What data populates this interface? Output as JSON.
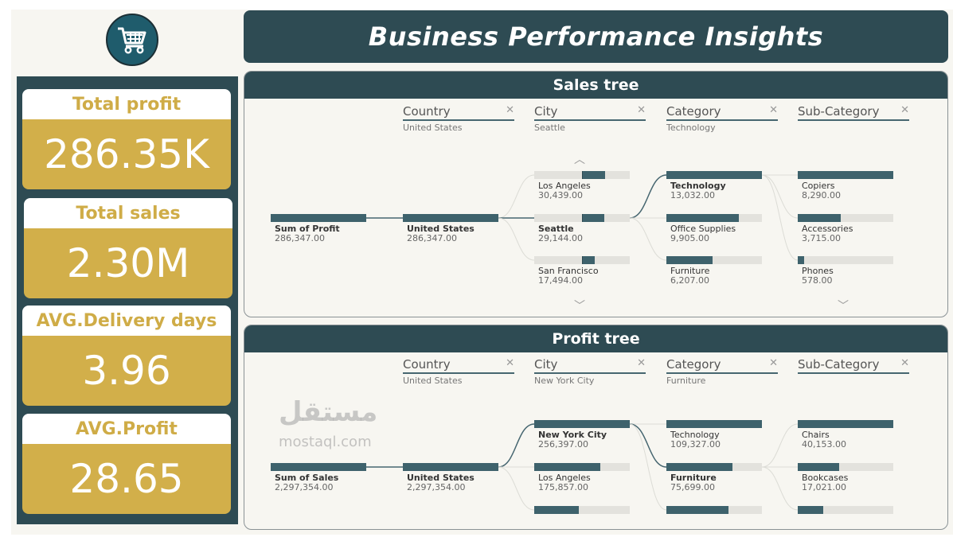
{
  "title": "Business Performance Insights",
  "logo_icon": "shopping-cart-icon",
  "kpis": [
    {
      "label": "Total profit",
      "value": "286.35K"
    },
    {
      "label": "Total sales",
      "value": "2.30M"
    },
    {
      "label": "AVG.Delivery days",
      "value": "3.96"
    },
    {
      "label": "AVG.Profit",
      "value": "28.65"
    }
  ],
  "colors": {
    "primary": "#2e4b53",
    "gold": "#d2af4a",
    "bar": "#3e626c"
  },
  "sales_tree": {
    "title": "Sales tree",
    "columns": [
      {
        "name": "Country",
        "selected": "United States"
      },
      {
        "name": "City",
        "selected": "Seattle"
      },
      {
        "name": "Category",
        "selected": "Technology"
      },
      {
        "name": "Sub-Category",
        "selected": ""
      }
    ],
    "root": {
      "label": "Sum of Profit",
      "value": "286,347.00"
    },
    "levels": [
      [
        {
          "label": "United States",
          "value": "286,347.00",
          "fill": 1.0,
          "selected": true
        }
      ],
      [
        {
          "label": "Los Angeles",
          "value": "30,439.00",
          "fill": 0.24,
          "diverging": true
        },
        {
          "label": "Seattle",
          "value": "29,144.00",
          "fill": 0.23,
          "diverging": true,
          "selected": true
        },
        {
          "label": "San Francisco",
          "value": "17,494.00",
          "fill": 0.13,
          "diverging": true
        }
      ],
      [
        {
          "label": "Technology",
          "value": "13,032.00",
          "fill": 1.0,
          "selected": true
        },
        {
          "label": "Office Supplies",
          "value": "9,905.00",
          "fill": 0.76
        },
        {
          "label": "Furniture",
          "value": "6,207.00",
          "fill": 0.48
        }
      ],
      [
        {
          "label": "Copiers",
          "value": "8,290.00",
          "fill": 1.0
        },
        {
          "label": "Accessories",
          "value": "3,715.00",
          "fill": 0.45
        },
        {
          "label": "Phones",
          "value": "578.00",
          "fill": 0.07
        }
      ]
    ]
  },
  "profit_tree": {
    "title": "Profit tree",
    "columns": [
      {
        "name": "Country",
        "selected": "United States"
      },
      {
        "name": "City",
        "selected": "New York City"
      },
      {
        "name": "Category",
        "selected": "Furniture"
      },
      {
        "name": "Sub-Category",
        "selected": ""
      }
    ],
    "root": {
      "label": "Sum of Sales",
      "value": "2,297,354.00"
    },
    "levels": [
      [
        {
          "label": "United States",
          "value": "2,297,354.00",
          "fill": 1.0,
          "selected": true
        }
      ],
      [
        {
          "label": "New York City",
          "value": "256,397.00",
          "fill": 1.0,
          "selected": true
        },
        {
          "label": "Los Angeles",
          "value": "175,857.00",
          "fill": 0.69
        },
        {
          "label": "",
          "value": "",
          "fill": 0.47
        }
      ],
      [
        {
          "label": "Technology",
          "value": "109,327.00",
          "fill": 1.0
        },
        {
          "label": "Furniture",
          "value": "75,699.00",
          "fill": 0.69,
          "selected": true
        },
        {
          "label": "",
          "value": "",
          "fill": 0.65
        }
      ],
      [
        {
          "label": "Chairs",
          "value": "40,153.00",
          "fill": 1.0
        },
        {
          "label": "Bookcases",
          "value": "17,021.00",
          "fill": 0.43
        },
        {
          "label": "",
          "value": "",
          "fill": 0.27
        }
      ]
    ]
  },
  "watermark": {
    "arabic": "مستقل",
    "latin": "mostaql.com"
  }
}
